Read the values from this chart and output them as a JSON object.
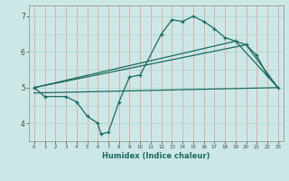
{
  "xlabel": "Humidex (Indice chaleur)",
  "bg_color": "#cce8e6",
  "line_color": "#1a6b60",
  "grid_red": "#e8a0a0",
  "grid_teal": "#b0d8d4",
  "xlim": [
    -0.5,
    23.5
  ],
  "ylim": [
    3.5,
    7.3
  ],
  "xticks": [
    0,
    1,
    2,
    3,
    4,
    5,
    6,
    7,
    8,
    9,
    10,
    11,
    12,
    13,
    14,
    15,
    16,
    17,
    18,
    19,
    20,
    21,
    22,
    23
  ],
  "yticks": [
    4,
    5,
    6,
    7
  ],
  "line1_x": [
    0,
    1,
    3,
    4,
    5,
    6,
    6.3,
    7,
    8,
    9,
    10,
    12,
    13,
    14,
    15,
    16,
    17,
    18,
    19,
    20,
    21,
    22,
    23
  ],
  "line1_y": [
    5.0,
    4.75,
    4.75,
    4.6,
    4.2,
    4.0,
    3.7,
    3.75,
    4.6,
    5.3,
    5.35,
    6.5,
    6.9,
    6.85,
    7.0,
    6.85,
    6.65,
    6.4,
    6.3,
    6.2,
    5.9,
    5.35,
    5.0
  ],
  "line2_x": [
    0,
    19,
    23
  ],
  "line2_y": [
    5.0,
    6.3,
    5.0
  ],
  "line3_x": [
    0,
    20,
    23
  ],
  "line3_y": [
    5.0,
    6.2,
    5.0
  ],
  "line4_x": [
    0,
    23
  ],
  "line4_y": [
    4.85,
    5.0
  ]
}
